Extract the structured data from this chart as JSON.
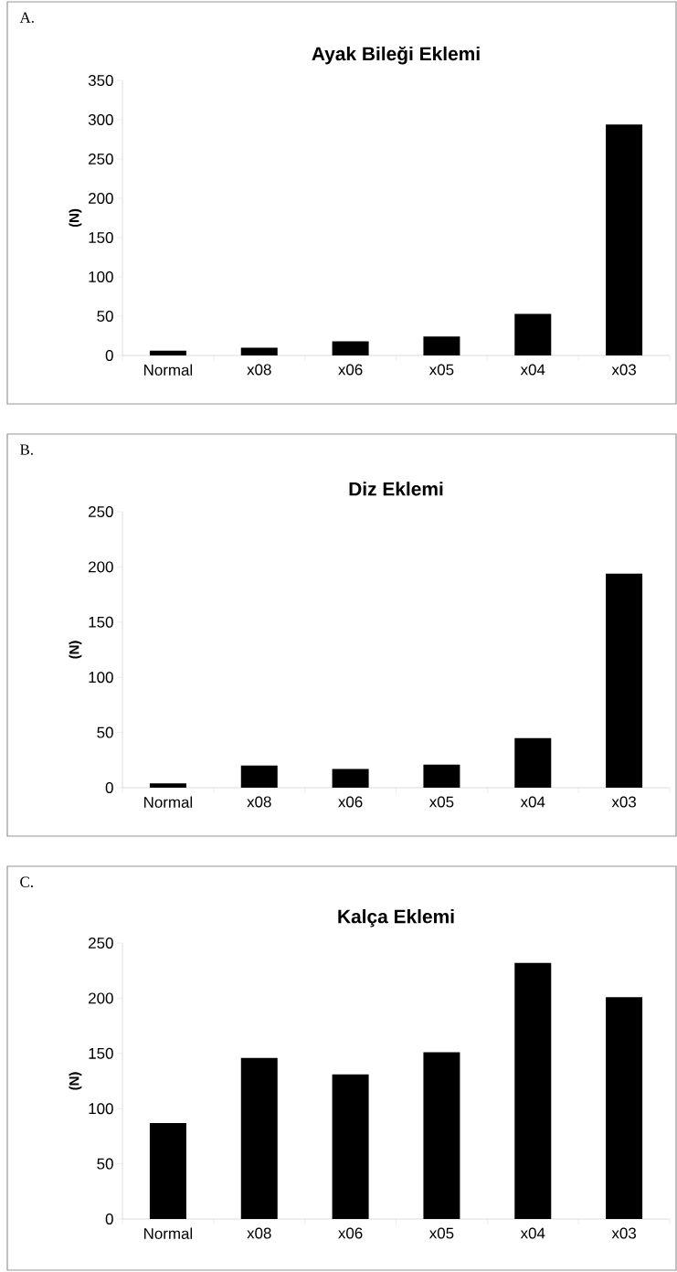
{
  "chart_data": [
    {
      "type": "bar",
      "title": "Ayak Bileği Eklemi",
      "ylabel": "(N)",
      "categories": [
        "Normal",
        "x08",
        "x06",
        "x05",
        "x04",
        "x03"
      ],
      "values": [
        6,
        10,
        18,
        24,
        53,
        294
      ],
      "color": "#000000",
      "ylim": [
        0,
        350
      ],
      "yticks": [
        0,
        50,
        100,
        150,
        200,
        250,
        300,
        350
      ],
      "grid": false,
      "annotations": [
        "A."
      ]
    },
    {
      "type": "bar",
      "title": "Diz Eklemi",
      "ylabel": "(N)",
      "categories": [
        "Normal",
        "x08",
        "x06",
        "x05",
        "x04",
        "x03"
      ],
      "values": [
        4,
        20,
        17,
        21,
        45,
        194
      ],
      "color": "#000000",
      "ylim": [
        0,
        250
      ],
      "yticks": [
        0,
        50,
        100,
        150,
        200,
        250
      ],
      "grid": false,
      "annotations": [
        "B."
      ]
    },
    {
      "type": "bar",
      "title": "Kalça Eklemi",
      "ylabel": "(N)",
      "categories": [
        "Normal",
        "x08",
        "x06",
        "x05",
        "x04",
        "x03"
      ],
      "values": [
        87,
        146,
        131,
        151,
        232,
        201
      ],
      "color": "#000000",
      "ylim": [
        0,
        250
      ],
      "yticks": [
        0,
        50,
        100,
        150,
        200,
        250
      ],
      "grid": false,
      "annotations": [
        "C."
      ]
    }
  ]
}
